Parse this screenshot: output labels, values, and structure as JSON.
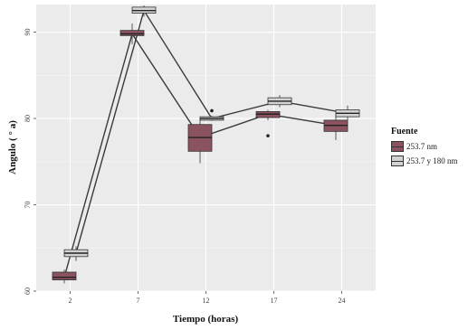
{
  "chart_data": {
    "type": "box",
    "xlabel": "Tiempo (horas)",
    "ylabel": "Angulo ( ° a)",
    "x_categories": [
      "2",
      "7",
      "12",
      "17",
      "24"
    ],
    "y_ticks": [
      "60",
      "70",
      "80",
      "90"
    ],
    "ylim": [
      60,
      93.2
    ],
    "grid": true,
    "legend": {
      "title": "Fuente",
      "position": "right"
    },
    "series": [
      {
        "name": "253.7 nm",
        "color": "#8b5360",
        "boxes": [
          {
            "x": "2",
            "whisker_low": 60.9,
            "q1": 61.3,
            "median": 61.6,
            "q3": 62.2,
            "whisker_high": 62.5,
            "outliers": []
          },
          {
            "x": "7",
            "whisker_low": 88.6,
            "q1": 89.6,
            "median": 89.8,
            "q3": 90.2,
            "whisker_high": 91.0,
            "outliers": []
          },
          {
            "x": "12",
            "whisker_low": 74.8,
            "q1": 76.2,
            "median": 77.8,
            "q3": 79.3,
            "whisker_high": 80.0,
            "outliers": []
          },
          {
            "x": "17",
            "whisker_low": 79.8,
            "q1": 80.1,
            "median": 80.5,
            "q3": 80.8,
            "whisker_high": 81.0,
            "outliers": [
              78.0
            ]
          },
          {
            "x": "24",
            "whisker_low": 77.5,
            "q1": 78.5,
            "median": 79.2,
            "q3": 79.8,
            "whisker_high": 80.5,
            "outliers": []
          }
        ]
      },
      {
        "name": "253.7 y 180 nm",
        "color": "#d3d3d3",
        "boxes": [
          {
            "x": "2",
            "whisker_low": 63.5,
            "q1": 64.0,
            "median": 64.4,
            "q3": 64.8,
            "whisker_high": 65.2,
            "outliers": []
          },
          {
            "x": "7",
            "whisker_low": 91.8,
            "q1": 92.2,
            "median": 92.5,
            "q3": 92.9,
            "whisker_high": 93.1,
            "outliers": []
          },
          {
            "x": "12",
            "whisker_low": 79.7,
            "q1": 79.8,
            "median": 80.0,
            "q3": 80.2,
            "whisker_high": 80.3,
            "outliers": [
              80.9
            ]
          },
          {
            "x": "17",
            "whisker_low": 81.3,
            "q1": 81.6,
            "median": 82.0,
            "q3": 82.4,
            "whisker_high": 82.7,
            "outliers": []
          },
          {
            "x": "24",
            "whisker_low": 79.8,
            "q1": 80.2,
            "median": 80.6,
            "q3": 81.0,
            "whisker_high": 81.5,
            "outliers": []
          }
        ]
      }
    ]
  }
}
